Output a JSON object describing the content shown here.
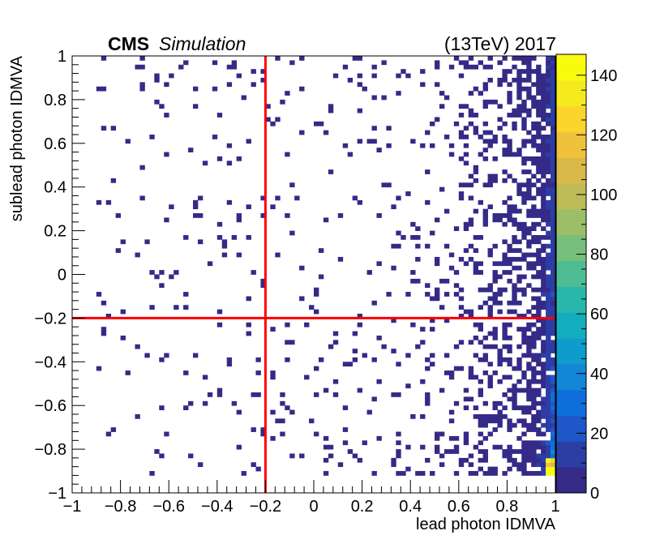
{
  "chart_data": {
    "type": "heatmap",
    "header": {
      "experiment": "CMS",
      "label": "Simulation",
      "energy_year": "(13TeV) 2017"
    },
    "xlabel": "lead photon IDMVA",
    "ylabel": "sublead photon IDMVA",
    "xlim": [
      -1,
      1
    ],
    "ylim": [
      -1,
      1
    ],
    "x_ticks": [
      "−1",
      "−0.8",
      "−0.6",
      "−0.4",
      "−0.2",
      "0",
      "0.2",
      "0.4",
      "0.6",
      "0.8",
      "1"
    ],
    "y_ticks": [
      "−1",
      "−0.8",
      "−0.6",
      "−0.4",
      "−0.2",
      "0",
      "0.2",
      "0.4",
      "0.6",
      "0.8",
      "1"
    ],
    "x_tick_values": [
      -1,
      -0.8,
      -0.6,
      -0.4,
      -0.2,
      0,
      0.2,
      0.4,
      0.6,
      0.8,
      1
    ],
    "y_tick_values": [
      -1,
      -0.8,
      -0.6,
      -0.4,
      -0.2,
      0,
      0.2,
      0.4,
      0.6,
      0.8,
      1
    ],
    "bins": {
      "nx": 100,
      "ny": 100,
      "x_range": [
        -1,
        1
      ],
      "y_range": [
        -1,
        1
      ]
    },
    "occupied_x_range": [
      -0.9,
      1.0
    ],
    "occupied_y_range": [
      -0.92,
      1.0
    ],
    "cut_lines": {
      "vertical_x": -0.2,
      "horizontal_y": -0.2,
      "color": "#ff0000"
    },
    "z_range": [
      0,
      147
    ],
    "z_ticks": [
      "0",
      "20",
      "40",
      "60",
      "80",
      "100",
      "120",
      "140"
    ],
    "z_tick_values": [
      0,
      20,
      40,
      60,
      80,
      100,
      120,
      140
    ],
    "palette": [
      "#352a87",
      "#2c3ea5",
      "#1f57c8",
      "#0f6fda",
      "#1386d6",
      "#0d9ccc",
      "#12aebf",
      "#2ab7ac",
      "#4ebd94",
      "#77bf7c",
      "#9bbe66",
      "#bcbb57",
      "#d8b94a",
      "#f0c23b",
      "#fbd52b",
      "#f5ea1e",
      "#f9fb0e"
    ]
  }
}
